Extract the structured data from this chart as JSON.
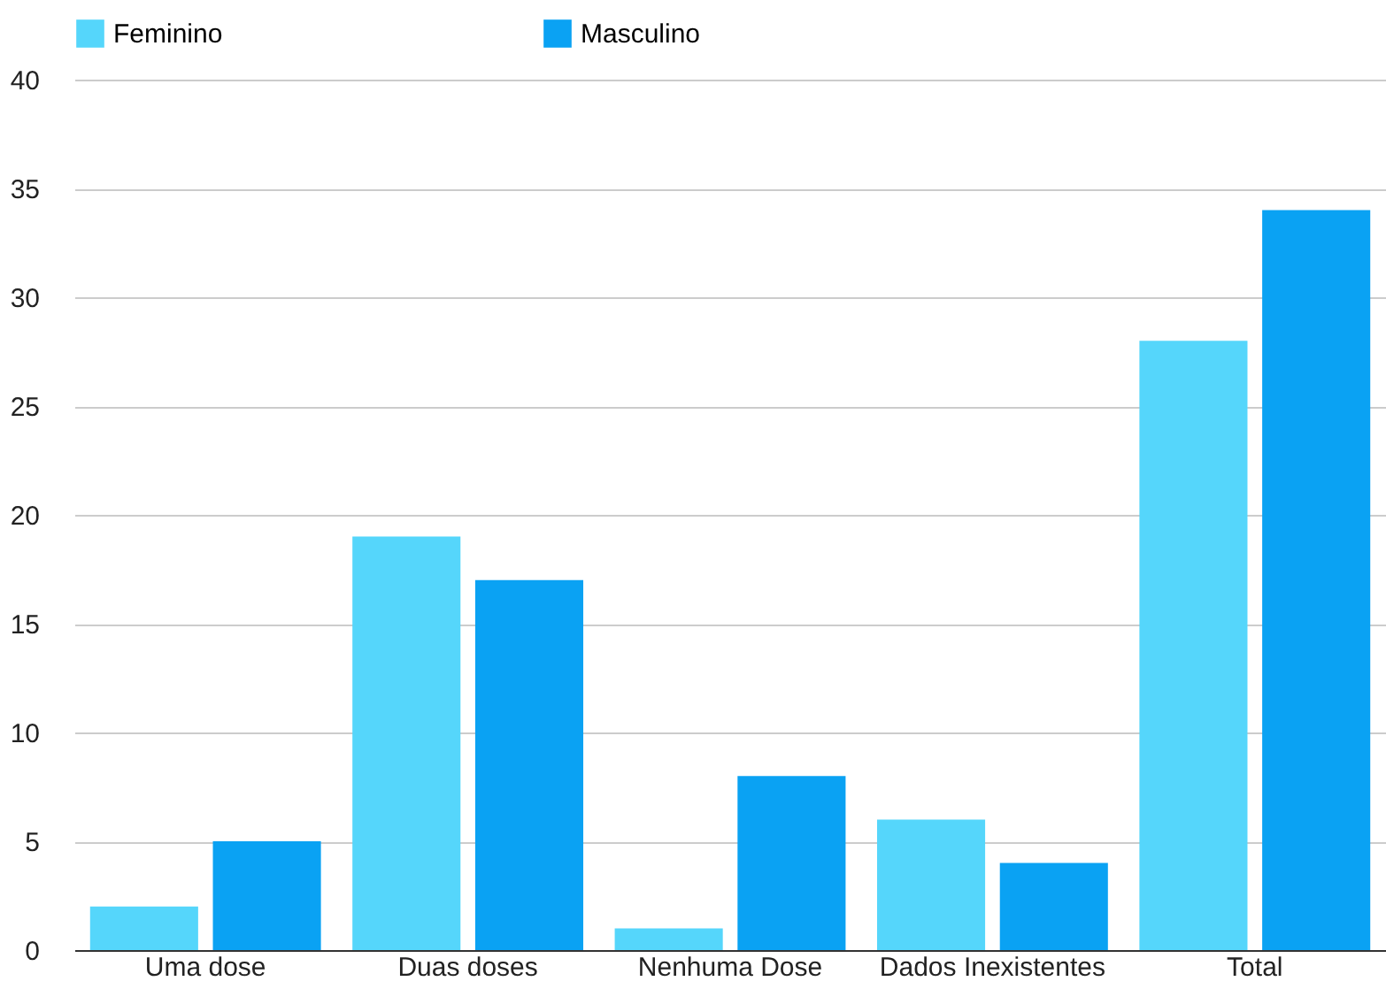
{
  "chart_data": {
    "type": "bar",
    "categories": [
      "Uma dose",
      "Duas doses",
      "Nenhuma Dose",
      "Dados Inexistentes",
      "Total"
    ],
    "series": [
      {
        "name": "Feminino",
        "color": "#55d6fb",
        "values": [
          2,
          19,
          1,
          6,
          28
        ]
      },
      {
        "name": "Masculino",
        "color": "#0aa2f3",
        "values": [
          5,
          17,
          8,
          4,
          34
        ]
      }
    ],
    "ylim": [
      0,
      40
    ],
    "yticks": [
      0,
      5,
      10,
      15,
      20,
      25,
      30,
      35,
      40
    ],
    "grid": "y",
    "legend": "top"
  }
}
